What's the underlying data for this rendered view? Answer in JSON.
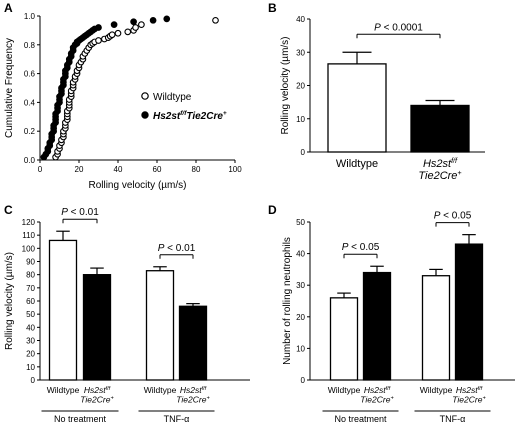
{
  "chart_data": [
    {
      "id": "A",
      "type": "scatter",
      "xlabel": "Rolling velocity (µm/s)",
      "ylabel": "Cumulative Frequency",
      "xlim": [
        0,
        100
      ],
      "ylim": [
        0,
        1.0
      ],
      "xticks": [
        "0",
        "20",
        "40",
        "60",
        "80",
        "100"
      ],
      "yticks": [
        "0.0",
        "0.2",
        "0.4",
        "0.6",
        "0.8",
        "1.0"
      ],
      "legend_position": "center-right",
      "series": [
        {
          "name": "Wildtype",
          "marker": "open-circle",
          "x": [
            8,
            9,
            9,
            10,
            10,
            11,
            11,
            12,
            12,
            12,
            13,
            13,
            13,
            14,
            14,
            14,
            14,
            15,
            15,
            15,
            15,
            16,
            16,
            16,
            17,
            17,
            17,
            18,
            18,
            19,
            19,
            20,
            20,
            21,
            22,
            22,
            23,
            24,
            25,
            26,
            27,
            28,
            30,
            33,
            35,
            36,
            37,
            40,
            45,
            48,
            49,
            52,
            90
          ],
          "y": [
            0.02,
            0.04,
            0.06,
            0.08,
            0.1,
            0.12,
            0.14,
            0.16,
            0.18,
            0.2,
            0.22,
            0.24,
            0.26,
            0.28,
            0.3,
            0.32,
            0.34,
            0.36,
            0.38,
            0.4,
            0.42,
            0.44,
            0.46,
            0.48,
            0.5,
            0.52,
            0.54,
            0.56,
            0.58,
            0.6,
            0.62,
            0.64,
            0.66,
            0.68,
            0.7,
            0.72,
            0.74,
            0.76,
            0.78,
            0.8,
            0.81,
            0.82,
            0.83,
            0.84,
            0.85,
            0.86,
            0.87,
            0.88,
            0.89,
            0.9,
            0.92,
            0.94,
            0.97
          ]
        },
        {
          "name": "Hs2st f/f Tie2Cre+",
          "marker": "filled-circle",
          "x": [
            2,
            3,
            4,
            4,
            5,
            5,
            6,
            6,
            6,
            7,
            7,
            7,
            8,
            8,
            8,
            8,
            9,
            9,
            9,
            10,
            10,
            10,
            11,
            11,
            11,
            12,
            12,
            12,
            13,
            13,
            13,
            14,
            14,
            15,
            15,
            16,
            16,
            17,
            17,
            18,
            19,
            19,
            20,
            21,
            22,
            23,
            24,
            25,
            26,
            27,
            28,
            30,
            38,
            48,
            58,
            65
          ],
          "y": [
            0.02,
            0.04,
            0.06,
            0.08,
            0.1,
            0.12,
            0.14,
            0.16,
            0.18,
            0.2,
            0.22,
            0.24,
            0.26,
            0.28,
            0.3,
            0.32,
            0.34,
            0.36,
            0.38,
            0.4,
            0.42,
            0.44,
            0.46,
            0.48,
            0.5,
            0.52,
            0.54,
            0.56,
            0.58,
            0.6,
            0.62,
            0.64,
            0.66,
            0.68,
            0.7,
            0.72,
            0.74,
            0.76,
            0.78,
            0.8,
            0.81,
            0.82,
            0.83,
            0.84,
            0.85,
            0.86,
            0.87,
            0.88,
            0.89,
            0.9,
            0.91,
            0.92,
            0.94,
            0.96,
            0.97,
            0.98
          ]
        }
      ]
    },
    {
      "id": "B",
      "type": "bar",
      "ylabel": "Rolling velocity (µm/s)",
      "ylim": [
        0,
        40
      ],
      "yticks": [
        "0",
        "10",
        "20",
        "30",
        "40"
      ],
      "categories": [
        {
          "line1": "Wildtype",
          "line2": ""
        },
        {
          "line1": "Hs2st f/f",
          "line2": "Tie2Cre+"
        }
      ],
      "values": [
        26.5,
        14
      ],
      "errors": [
        3.5,
        1.5
      ],
      "fills": [
        "#ffffff",
        "#000000"
      ],
      "annotations": [
        {
          "text": "P < 0.0001",
          "from": 0,
          "to": 1
        }
      ]
    },
    {
      "id": "C",
      "type": "bar",
      "ylabel": "Rolling velocity (µm/s)",
      "ylim": [
        0,
        120
      ],
      "yticks": [
        "0",
        "10",
        "20",
        "30",
        "40",
        "50",
        "60",
        "70",
        "80",
        "90",
        "100",
        "110",
        "120"
      ],
      "categories": [
        {
          "line1": "Wildtype",
          "line2": ""
        },
        {
          "line1": "Hs2st f/f",
          "line2": "Tie2Cre+"
        },
        {
          "line1": "Wildtype",
          "line2": ""
        },
        {
          "line1": "Hs2st f/f",
          "line2": "Tie2Cre+"
        }
      ],
      "groups": [
        {
          "label": "No treatment",
          "members": [
            0,
            1
          ]
        },
        {
          "label": "TNF-α",
          "members": [
            2,
            3
          ]
        }
      ],
      "values": [
        106,
        80,
        83,
        56
      ],
      "errors": [
        7,
        5,
        3,
        2
      ],
      "fills": [
        "#ffffff",
        "#000000",
        "#ffffff",
        "#000000"
      ],
      "annotations": [
        {
          "text": "P < 0.01",
          "from": 0,
          "to": 1
        },
        {
          "text": "P < 0.01",
          "from": 2,
          "to": 3
        }
      ]
    },
    {
      "id": "D",
      "type": "bar",
      "ylabel": "Number of rolling neutrophils",
      "ylim": [
        0,
        50
      ],
      "yticks": [
        "0",
        "10",
        "20",
        "30",
        "40",
        "50"
      ],
      "categories": [
        {
          "line1": "Wildtype",
          "line2": ""
        },
        {
          "line1": "Hs2st f/f",
          "line2": "Tie2Cre+"
        },
        {
          "line1": "Wildtype",
          "line2": ""
        },
        {
          "line1": "Hs2st f/f",
          "line2": "Tie2Cre+"
        }
      ],
      "groups": [
        {
          "label": "No treatment",
          "members": [
            0,
            1
          ]
        },
        {
          "label": "TNF-α",
          "members": [
            2,
            3
          ]
        }
      ],
      "values": [
        26,
        34,
        33,
        43
      ],
      "errors": [
        1.5,
        2,
        2,
        3
      ],
      "fills": [
        "#ffffff",
        "#000000",
        "#ffffff",
        "#000000"
      ],
      "annotations": [
        {
          "text": "P < 0.05",
          "from": 0,
          "to": 1
        },
        {
          "text": "P < 0.05",
          "from": 2,
          "to": 3
        }
      ]
    }
  ]
}
